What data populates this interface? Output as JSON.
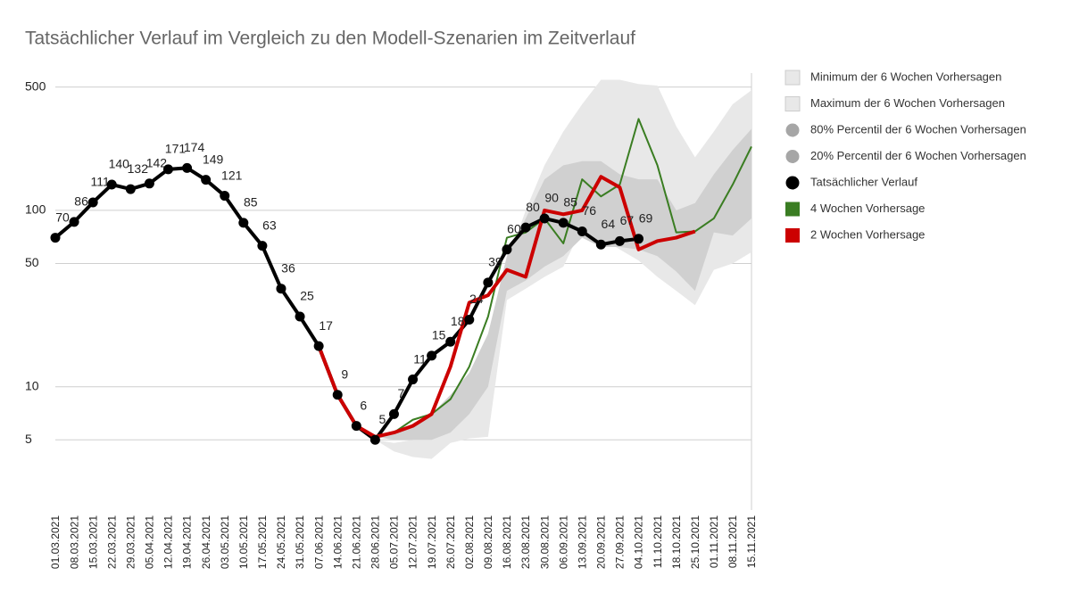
{
  "chart_data": {
    "type": "line",
    "title": "Tatsächlicher Verlauf im Vergleich zu den Modell-Szenarien im Zeitverlauf",
    "log_scale": true,
    "grid": true,
    "legend": "right",
    "ylim": [
      2,
      600
    ],
    "yticks": [
      5,
      10,
      50,
      100,
      500
    ],
    "categories": [
      "01.03.2021",
      "08.03.2021",
      "15.03.2021",
      "22.03.2021",
      "29.03.2021",
      "05.04.2021",
      "12.04.2021",
      "19.04.2021",
      "26.04.2021",
      "03.05.2021",
      "10.05.2021",
      "17.05.2021",
      "24.05.2021",
      "31.05.2021",
      "07.06.2021",
      "14.06.2021",
      "21.06.2021",
      "28.06.2021",
      "05.07.2021",
      "12.07.2021",
      "19.07.2021",
      "26.07.2021",
      "02.08.2021",
      "09.08.2021",
      "16.08.2021",
      "23.08.2021",
      "30.08.2021",
      "06.09.2021",
      "13.09.2021",
      "20.09.2021",
      "27.09.2021",
      "04.10.2021",
      "11.10.2021",
      "18.10.2021",
      "25.10.2021",
      "01.11.2021",
      "08.11.2021",
      "15.11.2021"
    ],
    "series": [
      {
        "name": "Minimum der 6 Wochen Vorhersagen",
        "color": "#e8e8e8",
        "values": [
          null,
          null,
          null,
          null,
          null,
          null,
          null,
          null,
          null,
          null,
          null,
          null,
          null,
          null,
          null,
          null,
          null,
          5,
          4.3,
          4,
          3.9,
          4.8,
          5.1,
          5.2,
          31,
          36,
          42,
          48,
          80,
          70,
          60,
          52,
          42,
          35,
          29,
          46,
          50,
          58
        ]
      },
      {
        "name": "Maximum der 6 Wochen Vorhersagen",
        "color": "#e8e8e8",
        "values": [
          null,
          null,
          null,
          null,
          null,
          null,
          null,
          null,
          null,
          null,
          null,
          null,
          null,
          null,
          null,
          null,
          null,
          5,
          4.8,
          5,
          5.5,
          8,
          10,
          20,
          50,
          100,
          180,
          280,
          400,
          550,
          550,
          520,
          510,
          300,
          200,
          280,
          400,
          480
        ]
      },
      {
        "name": "80% Percentil der 6 Wochen Vorhersagen",
        "color": "#a6a6a6",
        "values": [
          null,
          null,
          null,
          null,
          null,
          null,
          null,
          null,
          null,
          null,
          null,
          null,
          null,
          null,
          null,
          null,
          null,
          5.2,
          5.5,
          6,
          7,
          9,
          12,
          20,
          55,
          90,
          150,
          180,
          190,
          190,
          160,
          150,
          150,
          100,
          110,
          160,
          220,
          290
        ]
      },
      {
        "name": "20% Percentil der 6 Wochen Vorhersagen",
        "color": "#a6a6a6",
        "values": [
          null,
          null,
          null,
          null,
          null,
          null,
          null,
          null,
          null,
          null,
          null,
          null,
          null,
          null,
          null,
          null,
          null,
          5.2,
          5,
          5,
          5,
          5.5,
          7,
          10,
          35,
          40,
          48,
          55,
          70,
          62,
          62,
          60,
          55,
          45,
          35,
          75,
          72,
          90
        ]
      },
      {
        "name": "Tatsächlicher Verlauf",
        "color": "#000000",
        "values": [
          70,
          86,
          111,
          140,
          132,
          142,
          171,
          174,
          149,
          121,
          85,
          63,
          36,
          25,
          17,
          9,
          6,
          5,
          7,
          11,
          15,
          18,
          24,
          39,
          60,
          80,
          90,
          85,
          76,
          64,
          67,
          69,
          null,
          null,
          null,
          null,
          null,
          null
        ]
      },
      {
        "name": "4 Wochen Vorhersage",
        "color": "#3a7d22",
        "values": [
          null,
          null,
          null,
          null,
          null,
          null,
          null,
          null,
          null,
          null,
          null,
          null,
          null,
          null,
          null,
          null,
          null,
          5.2,
          5.5,
          6.5,
          7,
          8.5,
          13,
          25,
          70,
          75,
          90,
          65,
          150,
          120,
          140,
          330,
          180,
          75,
          76,
          90,
          140,
          230
        ]
      },
      {
        "name": "2 Wochen Vorhersage",
        "color": "#cc0000",
        "values": [
          null,
          null,
          null,
          null,
          null,
          null,
          null,
          null,
          null,
          null,
          null,
          null,
          null,
          null,
          17,
          9,
          6,
          5.2,
          5.5,
          6,
          7,
          13,
          30,
          33,
          46,
          42,
          100,
          95,
          100,
          155,
          135,
          60,
          67,
          70,
          76,
          null,
          null,
          null
        ]
      }
    ]
  }
}
